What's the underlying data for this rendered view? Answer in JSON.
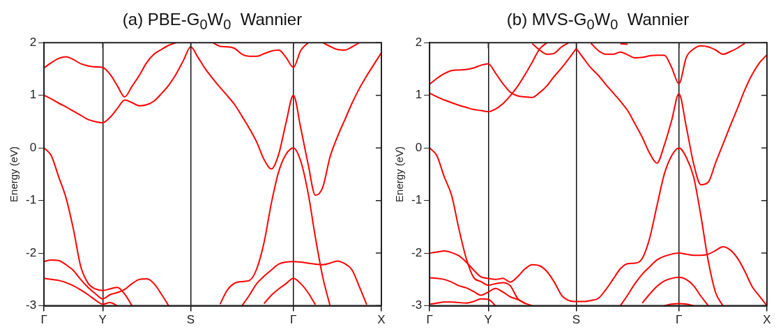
{
  "chart_data": [
    {
      "type": "line",
      "title": "(a) PBE-G$_{0}$W$_{0}$  Wannier",
      "ylabel": "Energy (eV)",
      "ylim": [
        -3,
        2
      ],
      "yticks": [
        -3,
        -2,
        -1,
        0,
        1,
        2
      ],
      "grid": "x",
      "legend": false,
      "categories": [
        "Γ",
        null,
        null,
        null,
        null,
        null,
        null,
        null,
        "Y",
        null,
        null,
        null,
        null,
        null,
        null,
        null,
        null,
        null,
        null,
        null,
        "S",
        null,
        null,
        null,
        null,
        null,
        null,
        null,
        null,
        null,
        null,
        null,
        null,
        null,
        "Γ",
        null,
        null,
        null,
        null,
        null,
        null,
        null,
        null,
        null,
        null,
        null,
        "X"
      ],
      "series": [
        {
          "color": "#ff0000",
          "values": [
            1.0,
            0.93,
            0.85,
            0.78,
            0.7,
            0.62,
            0.54,
            0.5,
            0.48,
            0.58,
            0.75,
            0.91,
            0.86,
            0.8,
            0.82,
            0.89,
            1.03,
            1.19,
            1.4,
            1.66,
            1.92,
            1.72,
            1.5,
            1.32,
            1.15,
            0.99,
            0.82,
            0.6,
            0.37,
            0.11,
            -0.22,
            -0.4,
            -0.12,
            0.48,
            1.0,
            0.38,
            -0.3,
            -0.9,
            -0.75,
            -0.17,
            0.21,
            0.53,
            0.85,
            1.13,
            1.37,
            1.59,
            1.81
          ]
        },
        {
          "color": "#ff0000",
          "values": [
            1.52,
            1.62,
            1.7,
            1.73,
            1.68,
            1.6,
            1.56,
            1.54,
            1.53,
            1.4,
            1.18,
            0.97,
            1.17,
            1.38,
            1.62,
            1.78,
            1.87,
            1.95,
            2.0,
            null,
            null,
            null,
            null,
            null,
            null,
            null,
            null,
            null,
            null,
            null,
            null,
            null,
            null,
            null,
            null,
            null,
            null,
            null,
            null,
            null,
            null,
            null,
            null,
            null,
            null,
            null,
            null
          ]
        },
        {
          "color": "#ff0000",
          "values": [
            null,
            null,
            null,
            null,
            null,
            null,
            null,
            null,
            null,
            null,
            null,
            null,
            null,
            null,
            null,
            null,
            null,
            null,
            null,
            null,
            null,
            null,
            null,
            2.0,
            1.93,
            1.92,
            1.89,
            1.78,
            1.74,
            1.74,
            1.79,
            1.84,
            1.86,
            1.72,
            1.53,
            1.85,
            2.0,
            null,
            null,
            null,
            null,
            null,
            null,
            null,
            null,
            null,
            null
          ]
        },
        {
          "color": "#ff0000",
          "values": [
            null,
            null,
            null,
            null,
            null,
            null,
            null,
            null,
            null,
            null,
            null,
            null,
            null,
            null,
            null,
            null,
            null,
            null,
            null,
            null,
            null,
            null,
            null,
            null,
            null,
            null,
            null,
            null,
            null,
            null,
            null,
            null,
            null,
            null,
            null,
            null,
            null,
            null,
            2.0,
            1.93,
            1.87,
            1.86,
            1.92,
            2.0,
            null,
            null,
            null
          ]
        },
        {
          "color": "#ff0000",
          "values": [
            0,
            -0.15,
            -0.55,
            -0.95,
            -1.54,
            -2.25,
            -2.57,
            -2.68,
            -2.71,
            -2.68,
            -2.65,
            -2.78,
            -3.0,
            null,
            null,
            null,
            null,
            null,
            null,
            null,
            null,
            null,
            null,
            null,
            null,
            null,
            null,
            null,
            null,
            null,
            null,
            null,
            null,
            null,
            null,
            null,
            null,
            null,
            null,
            null,
            null,
            null,
            null,
            null,
            null,
            null,
            null
          ]
        },
        {
          "color": "#ff0000",
          "values": [
            -2.16,
            -2.13,
            -2.14,
            -2.22,
            -2.33,
            -2.5,
            -2.65,
            -2.77,
            -2.87,
            -2.79,
            -2.75,
            -2.69,
            -2.58,
            -2.5,
            -2.49,
            -2.58,
            -2.78,
            -3.0,
            null,
            null,
            null,
            null,
            null,
            null,
            null,
            null,
            null,
            null,
            null,
            null,
            null,
            null,
            null,
            null,
            null,
            null,
            null,
            null,
            null,
            null,
            null,
            null,
            null,
            null,
            null,
            null,
            null
          ]
        },
        {
          "color": "#ff0000",
          "values": [
            -2.48,
            -2.5,
            -2.52,
            -2.56,
            -2.62,
            -2.7,
            -2.79,
            -2.89,
            -2.97,
            -2.94,
            -3.0,
            null,
            null,
            null,
            null,
            null,
            null,
            null,
            null,
            null,
            null,
            null,
            null,
            null,
            null,
            null,
            null,
            null,
            null,
            null,
            null,
            null,
            null,
            null,
            null,
            null,
            null,
            null,
            null,
            null,
            null,
            null,
            null,
            null,
            null,
            null,
            null
          ]
        },
        {
          "color": "#ff0000",
          "values": [
            null,
            null,
            null,
            null,
            null,
            null,
            null,
            null,
            null,
            null,
            null,
            null,
            null,
            null,
            null,
            null,
            null,
            null,
            null,
            null,
            null,
            null,
            null,
            null,
            -2.97,
            -2.7,
            -2.57,
            -2.54,
            -2.52,
            -2.3,
            -1.8,
            -1.05,
            -0.45,
            -0.12,
            0,
            -0.25,
            -0.85,
            -1.7,
            -2.45,
            -3.0,
            null,
            null,
            null,
            null,
            null,
            null,
            null
          ]
        },
        {
          "color": "#ff0000",
          "values": [
            null,
            null,
            null,
            null,
            null,
            null,
            null,
            null,
            null,
            null,
            null,
            null,
            null,
            null,
            null,
            null,
            null,
            null,
            null,
            null,
            null,
            null,
            null,
            null,
            null,
            null,
            null,
            -3.0,
            -2.8,
            -2.58,
            -2.44,
            -2.32,
            -2.21,
            -2.17,
            -2.16,
            -2.17,
            -2.19,
            -2.21,
            -2.22,
            -2.19,
            -2.15,
            -2.2,
            -2.32,
            -2.64,
            -2.98,
            null,
            null
          ]
        },
        {
          "color": "#ff0000",
          "values": [
            null,
            null,
            null,
            null,
            null,
            null,
            null,
            null,
            null,
            null,
            null,
            null,
            null,
            null,
            null,
            null,
            null,
            null,
            null,
            null,
            null,
            null,
            null,
            null,
            null,
            null,
            null,
            null,
            null,
            null,
            -2.96,
            -2.8,
            -2.68,
            -2.58,
            -2.48,
            -2.58,
            -2.75,
            -2.98,
            null,
            null,
            null,
            null,
            null,
            null,
            null,
            null,
            null
          ]
        }
      ]
    },
    {
      "type": "line",
      "title": "(b) MVS-G$_{0}$W$_{0}$  Wannier",
      "ylabel": "Energy (eV)",
      "ylim": [
        -3,
        2
      ],
      "yticks": [
        -3,
        -2,
        -1,
        0,
        1,
        2
      ],
      "grid": "x",
      "legend": false,
      "categories": [
        "Γ",
        null,
        null,
        null,
        null,
        null,
        null,
        null,
        "Y",
        null,
        null,
        null,
        null,
        null,
        null,
        null,
        null,
        null,
        null,
        null,
        "S",
        null,
        null,
        null,
        null,
        null,
        null,
        null,
        null,
        null,
        null,
        null,
        null,
        null,
        "Γ",
        null,
        null,
        null,
        null,
        null,
        null,
        null,
        null,
        null,
        null,
        null,
        "X"
      ],
      "series": [
        {
          "color": "#ff0000",
          "values": [
            1.04,
            0.97,
            0.91,
            0.86,
            0.81,
            0.77,
            0.73,
            0.71,
            0.69,
            0.74,
            0.84,
            0.99,
            1.17,
            1.39,
            1.63,
            1.88,
            2.0,
            null,
            null,
            null,
            null,
            null,
            null,
            null,
            null,
            null,
            null,
            null,
            null,
            null,
            null,
            null,
            null,
            null,
            null,
            null,
            null,
            null,
            null,
            null,
            null,
            null,
            null,
            null,
            null,
            null,
            null
          ]
        },
        {
          "color": "#ff0000",
          "values": [
            1.21,
            1.32,
            1.41,
            1.47,
            1.48,
            1.49,
            1.52,
            1.57,
            1.6,
            1.42,
            1.22,
            1.06,
            0.99,
            0.97,
            0.96,
            1.05,
            1.18,
            1.36,
            1.52,
            1.7,
            1.89,
            null,
            null,
            null,
            null,
            null,
            null,
            null,
            null,
            null,
            null,
            null,
            null,
            null,
            null,
            null,
            null,
            null,
            null,
            null,
            null,
            null,
            null,
            null,
            null,
            null,
            null
          ]
        },
        {
          "color": "#ff0000",
          "values": [
            null,
            null,
            null,
            null,
            null,
            null,
            null,
            null,
            null,
            null,
            null,
            null,
            null,
            null,
            1.98,
            1.86,
            1.78,
            1.8,
            1.92,
            2.0,
            null,
            null,
            null,
            null,
            null,
            null,
            null,
            null,
            null,
            null,
            null,
            null,
            null,
            null,
            null,
            null,
            null,
            null,
            null,
            null,
            null,
            null,
            null,
            null,
            null,
            null,
            null
          ]
        },
        {
          "color": "#ff0000",
          "values": [
            null,
            null,
            null,
            null,
            null,
            null,
            null,
            null,
            null,
            null,
            null,
            null,
            null,
            null,
            null,
            null,
            null,
            null,
            null,
            null,
            1.89,
            1.7,
            1.52,
            1.38,
            1.21,
            1.05,
            0.89,
            0.71,
            0.46,
            0.2,
            -0.1,
            -0.29,
            0.05,
            0.52,
            1.03,
            0.4,
            -0.3,
            -0.7,
            -0.65,
            -0.28,
            0.07,
            0.42,
            0.76,
            1.11,
            1.4,
            1.62,
            1.77
          ]
        },
        {
          "color": "#ff0000",
          "values": [
            null,
            null,
            null,
            null,
            null,
            null,
            null,
            null,
            null,
            null,
            null,
            null,
            null,
            null,
            null,
            null,
            null,
            null,
            null,
            null,
            null,
            null,
            1.99,
            1.85,
            1.78,
            1.78,
            1.82,
            1.77,
            1.71,
            1.72,
            1.75,
            1.76,
            1.76,
            1.53,
            1.22,
            1.72,
            1.88,
            1.94,
            1.92,
            1.86,
            1.78,
            1.83,
            1.9,
            1.99,
            null,
            null,
            null
          ]
        },
        {
          "color": "#ff0000",
          "values": [
            null,
            null,
            null,
            null,
            null,
            null,
            null,
            null,
            null,
            null,
            null,
            null,
            null,
            null,
            null,
            null,
            null,
            null,
            null,
            null,
            null,
            null,
            null,
            null,
            null,
            null,
            1.98,
            1.97,
            null,
            null,
            null,
            null,
            null,
            null,
            null,
            null,
            null,
            null,
            null,
            null,
            null,
            null,
            null,
            null,
            null,
            null,
            null
          ]
        },
        {
          "color": "#ff0000",
          "values": [
            0,
            -0.15,
            -0.55,
            -0.9,
            -1.54,
            -2.1,
            -2.46,
            -2.54,
            -2.61,
            -2.58,
            -2.56,
            -2.62,
            -2.86,
            -2.96,
            null,
            null,
            null,
            null,
            null,
            null,
            null,
            null,
            null,
            null,
            null,
            null,
            null,
            null,
            null,
            null,
            null,
            null,
            null,
            null,
            null,
            null,
            null,
            null,
            null,
            null,
            null,
            null,
            null,
            null,
            null,
            null,
            null
          ]
        },
        {
          "color": "#ff0000",
          "values": [
            -2.0,
            -1.98,
            -1.96,
            -1.99,
            -2.05,
            -2.17,
            -2.32,
            -2.45,
            -2.48,
            -2.5,
            -2.48,
            -2.55,
            -2.45,
            -2.3,
            -2.22,
            -2.24,
            -2.35,
            -2.55,
            -2.8,
            -2.9,
            -2.92,
            -2.92,
            -2.9,
            -2.86,
            -2.7,
            -2.5,
            -2.3,
            -2.2,
            -2.19,
            -2.1,
            -1.72,
            -1.1,
            -0.5,
            -0.15,
            0,
            -0.18,
            -0.55,
            -1.3,
            -2.15,
            -2.75,
            -3.0,
            null,
            null,
            null,
            null,
            null,
            null
          ]
        },
        {
          "color": "#ff0000",
          "values": [
            -2.47,
            -2.48,
            -2.5,
            -2.55,
            -2.62,
            -2.66,
            -2.73,
            -2.8,
            -2.74,
            -2.67,
            -2.74,
            -2.83,
            -2.88,
            -2.95,
            -3.0,
            null,
            null,
            null,
            null,
            null,
            null,
            null,
            null,
            null,
            null,
            null,
            null,
            null,
            null,
            null,
            null,
            null,
            null,
            null,
            null,
            null,
            null,
            null,
            null,
            null,
            null,
            null,
            null,
            null,
            null,
            null,
            null
          ]
        },
        {
          "color": "#ff0000",
          "values": [
            -2.97,
            -2.95,
            -2.93,
            -2.93,
            -2.94,
            -2.95,
            -2.92,
            -2.87,
            -2.88,
            -3.0,
            null,
            null,
            null,
            null,
            null,
            null,
            null,
            null,
            null,
            null,
            null,
            null,
            null,
            null,
            null,
            null,
            null,
            null,
            null,
            null,
            null,
            null,
            null,
            null,
            null,
            null,
            null,
            null,
            null,
            null,
            null,
            null,
            null,
            null,
            null,
            null,
            null
          ]
        },
        {
          "color": "#ff0000",
          "values": [
            null,
            null,
            null,
            null,
            null,
            null,
            null,
            null,
            null,
            null,
            null,
            null,
            null,
            null,
            null,
            null,
            null,
            null,
            null,
            null,
            null,
            null,
            null,
            null,
            null,
            null,
            -3.0,
            -2.8,
            -2.58,
            -2.4,
            -2.26,
            -2.13,
            -2.06,
            -2.02,
            -2.0,
            -2.02,
            -2.04,
            -2.04,
            -2.02,
            -1.95,
            -1.88,
            -1.94,
            -2.1,
            -2.35,
            -2.64,
            -2.82,
            -3.0
          ]
        },
        {
          "color": "#ff0000",
          "values": [
            null,
            null,
            null,
            null,
            null,
            null,
            null,
            null,
            null,
            null,
            null,
            null,
            null,
            null,
            null,
            null,
            null,
            null,
            null,
            null,
            null,
            null,
            null,
            null,
            null,
            null,
            null,
            null,
            null,
            -2.95,
            -2.78,
            -2.63,
            -2.53,
            -2.48,
            -2.46,
            -2.5,
            -2.62,
            -2.82,
            -3.0,
            null,
            null,
            null,
            null,
            null,
            null,
            null,
            null
          ]
        },
        {
          "color": "#ff0000",
          "values": [
            null,
            null,
            null,
            null,
            null,
            null,
            null,
            null,
            null,
            null,
            null,
            null,
            null,
            null,
            null,
            null,
            null,
            null,
            null,
            null,
            null,
            null,
            null,
            null,
            null,
            null,
            null,
            null,
            null,
            null,
            null,
            null,
            -3.0,
            -2.97,
            -2.96,
            -2.97,
            -3.0,
            null,
            null,
            null,
            null,
            null,
            null,
            null,
            null,
            null,
            null
          ]
        }
      ]
    }
  ]
}
